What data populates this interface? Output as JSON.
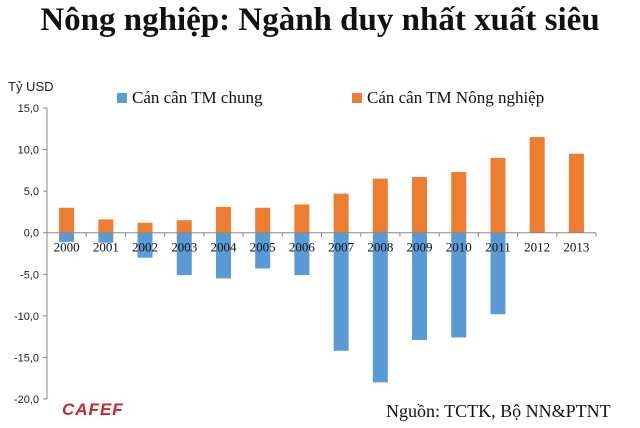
{
  "title": "Nông nghiệp: Ngành duy nhất xuất siêu",
  "source": "Nguồn: TCTK, Bộ NN&PTNT",
  "logo": "CAFEF",
  "colors": {
    "overall": "#5b9bd5",
    "agriculture": "#ed7d31",
    "logo": "#c9282d"
  },
  "chart_data": {
    "type": "bar",
    "title": "Nông nghiệp: Ngành duy nhất xuất siêu",
    "ylabel": "Tỷ USD",
    "xlabel": "",
    "ylim": [
      -20,
      15
    ],
    "yticks": [
      15,
      10,
      5,
      0,
      -5,
      -10,
      -15,
      -20
    ],
    "ytick_labels": [
      "15,0",
      "10,0",
      "5,0",
      "0,0",
      "-5,0",
      "-10,0",
      "-15,0",
      "-20,0"
    ],
    "grid": false,
    "legend": "top",
    "categories": [
      "2000",
      "2001",
      "2002",
      "2003",
      "2004",
      "2005",
      "2006",
      "2007",
      "2008",
      "2009",
      "2010",
      "2011",
      "2012",
      "2013"
    ],
    "series": [
      {
        "name": "Cán cân TM chung",
        "values": [
          -1.1,
          -1.2,
          -3.0,
          -5.1,
          -5.5,
          -4.3,
          -5.1,
          -14.2,
          -18.0,
          -12.9,
          -12.6,
          -9.8,
          0.7,
          0.9
        ]
      },
      {
        "name": "Cán cân TM Nông nghiệp",
        "values": [
          3.0,
          1.6,
          1.2,
          1.5,
          3.1,
          3.0,
          3.4,
          4.7,
          6.5,
          6.7,
          7.3,
          9.0,
          11.5,
          9.5
        ]
      }
    ]
  }
}
